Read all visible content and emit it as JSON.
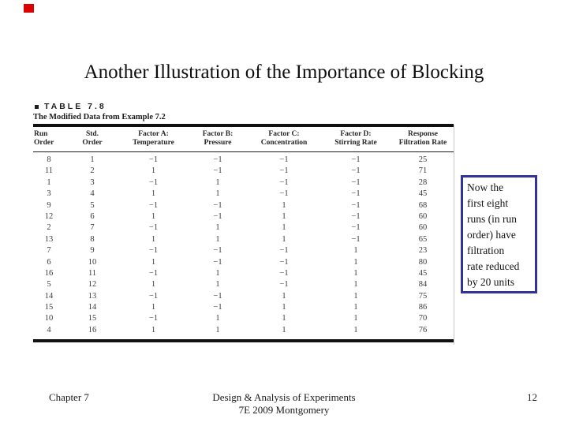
{
  "slide": {
    "title": "Another Illustration of the Importance of Blocking",
    "marker_color": "#dd0000",
    "callout_border_color": "#333399"
  },
  "table": {
    "caption_label": "TABLE 7.8",
    "caption_subtitle": "The Modified Data from Example 7.2",
    "columns": [
      {
        "line1": "Run",
        "line2": "Order"
      },
      {
        "line1": "Std.",
        "line2": "Order"
      },
      {
        "line1": "Factor A:",
        "line2": "Temperature"
      },
      {
        "line1": "Factor B:",
        "line2": "Pressure"
      },
      {
        "line1": "Factor C:",
        "line2": "Concentration"
      },
      {
        "line1": "Factor D:",
        "line2": "Stirring Rate"
      },
      {
        "line1": "Response",
        "line2": "Filtration Rate"
      }
    ],
    "rows": [
      [
        "8",
        "1",
        "−1",
        "−1",
        "−1",
        "−1",
        "25"
      ],
      [
        "11",
        "2",
        "1",
        "−1",
        "−1",
        "−1",
        "71"
      ],
      [
        "1",
        "3",
        "−1",
        "1",
        "−1",
        "−1",
        "28"
      ],
      [
        "3",
        "4",
        "1",
        "1",
        "−1",
        "−1",
        "45"
      ],
      [
        "9",
        "5",
        "−1",
        "−1",
        "1",
        "−1",
        "68"
      ],
      [
        "12",
        "6",
        "1",
        "−1",
        "1",
        "−1",
        "60"
      ],
      [
        "2",
        "7",
        "−1",
        "1",
        "1",
        "−1",
        "60"
      ],
      [
        "13",
        "8",
        "1",
        "1",
        "1",
        "−1",
        "65"
      ],
      [
        "7",
        "9",
        "−1",
        "−1",
        "−1",
        "1",
        "23"
      ],
      [
        "6",
        "10",
        "1",
        "−1",
        "−1",
        "1",
        "80"
      ],
      [
        "16",
        "11",
        "−1",
        "1",
        "−1",
        "1",
        "45"
      ],
      [
        "5",
        "12",
        "1",
        "1",
        "−1",
        "1",
        "84"
      ],
      [
        "14",
        "13",
        "−1",
        "−1",
        "1",
        "1",
        "75"
      ],
      [
        "15",
        "14",
        "1",
        "−1",
        "1",
        "1",
        "86"
      ],
      [
        "10",
        "15",
        "−1",
        "1",
        "1",
        "1",
        "70"
      ],
      [
        "4",
        "16",
        "1",
        "1",
        "1",
        "1",
        "76"
      ]
    ]
  },
  "callout": {
    "lines": [
      "Now the",
      "first eight",
      "runs (in run",
      "order) have",
      "filtration",
      "rate reduced",
      "by 20 units"
    ]
  },
  "footer": {
    "left": "Chapter 7",
    "center_line1": "Design & Analysis of Experiments",
    "center_line2": "7E 2009 Montgomery",
    "page_number": "12"
  }
}
